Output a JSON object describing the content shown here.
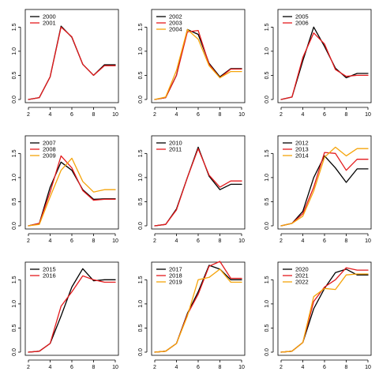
{
  "colors": {
    "black": "#000000",
    "red": "#e41a1c",
    "orange": "#f5a40a"
  },
  "chart_data": [
    {
      "type": "line",
      "x": [
        2,
        3,
        4,
        5,
        6,
        7,
        8,
        9,
        10
      ],
      "xlim": [
        2,
        10
      ],
      "ylim": [
        0,
        1.8
      ],
      "xticks": [
        "2",
        "4",
        "6",
        "8",
        "10"
      ],
      "yticks": [
        "0.0",
        "0.5",
        "1.0",
        "1.5"
      ],
      "grid": false,
      "legend_position": "top-left",
      "series": [
        {
          "name": "2000",
          "color": "#000000",
          "values": [
            0,
            0.04,
            0.47,
            1.52,
            1.29,
            0.73,
            0.5,
            0.72,
            0.72
          ]
        },
        {
          "name": "2001",
          "color": "#e41a1c",
          "values": [
            0,
            0.04,
            0.47,
            1.5,
            1.3,
            0.73,
            0.5,
            0.7,
            0.7
          ]
        }
      ]
    },
    {
      "type": "line",
      "x": [
        2,
        3,
        4,
        5,
        6,
        7,
        8,
        9,
        10
      ],
      "xlim": [
        2,
        10
      ],
      "ylim": [
        0,
        1.8
      ],
      "xticks": [
        "2",
        "4",
        "6",
        "8",
        "10"
      ],
      "yticks": [
        "0.0",
        "0.5",
        "1.0",
        "1.5"
      ],
      "grid": false,
      "legend_position": "top-left",
      "series": [
        {
          "name": "2002",
          "color": "#000000",
          "values": [
            0,
            0.04,
            0.5,
            1.45,
            1.35,
            0.75,
            0.47,
            0.64,
            0.64
          ]
        },
        {
          "name": "2003",
          "color": "#e41a1c",
          "values": [
            0,
            0.04,
            0.5,
            1.4,
            1.43,
            0.73,
            0.45,
            0.63,
            0.63
          ]
        },
        {
          "name": "2004",
          "color": "#f5a40a",
          "values": [
            0,
            0.05,
            0.6,
            1.45,
            1.25,
            0.7,
            0.45,
            0.58,
            0.58
          ]
        }
      ]
    },
    {
      "type": "line",
      "x": [
        2,
        3,
        4,
        5,
        6,
        7,
        8,
        9,
        10
      ],
      "xlim": [
        2,
        10
      ],
      "ylim": [
        0,
        1.8
      ],
      "xticks": [
        "2",
        "4",
        "6",
        "8",
        "10"
      ],
      "yticks": [
        "0.0",
        "0.5",
        "1.0",
        "1.5"
      ],
      "grid": false,
      "legend_position": "top-left",
      "series": [
        {
          "name": "2005",
          "color": "#000000",
          "values": [
            0,
            0.05,
            0.8,
            1.5,
            1.1,
            0.65,
            0.45,
            0.54,
            0.54
          ]
        },
        {
          "name": "2006",
          "color": "#e41a1c",
          "values": [
            0,
            0.05,
            0.87,
            1.38,
            1.15,
            0.62,
            0.48,
            0.5,
            0.5
          ]
        }
      ]
    },
    {
      "type": "line",
      "x": [
        2,
        3,
        4,
        5,
        6,
        7,
        8,
        9,
        10
      ],
      "xlim": [
        2,
        10
      ],
      "ylim": [
        0,
        1.8
      ],
      "xticks": [
        "2",
        "4",
        "6",
        "8",
        "10"
      ],
      "yticks": [
        "0.0",
        "0.5",
        "1.0",
        "1.5"
      ],
      "grid": false,
      "legend_position": "top-left",
      "series": [
        {
          "name": "2007",
          "color": "#000000",
          "values": [
            0,
            0.05,
            0.8,
            1.32,
            1.15,
            0.75,
            0.55,
            0.56,
            0.56
          ]
        },
        {
          "name": "2008",
          "color": "#e41a1c",
          "values": [
            0,
            0.05,
            0.7,
            1.45,
            1.2,
            0.73,
            0.53,
            0.55,
            0.55
          ]
        },
        {
          "name": "2009",
          "color": "#f5a40a",
          "values": [
            0,
            0.03,
            0.6,
            1.15,
            1.4,
            0.92,
            0.7,
            0.75,
            0.75
          ]
        }
      ]
    },
    {
      "type": "line",
      "x": [
        2,
        3,
        4,
        5,
        6,
        7,
        8,
        9,
        10
      ],
      "xlim": [
        2,
        10
      ],
      "ylim": [
        0,
        1.8
      ],
      "xticks": [
        "2",
        "4",
        "6",
        "8",
        "10"
      ],
      "yticks": [
        "0.0",
        "0.5",
        "1.0",
        "1.5"
      ],
      "grid": false,
      "legend_position": "top-left",
      "series": [
        {
          "name": "2010",
          "color": "#000000",
          "values": [
            0,
            0.03,
            0.35,
            1.0,
            1.63,
            1.03,
            0.75,
            0.86,
            0.86
          ]
        },
        {
          "name": "2011",
          "color": "#e41a1c",
          "values": [
            0,
            0.03,
            0.33,
            1.0,
            1.6,
            1.05,
            0.8,
            0.93,
            0.93
          ]
        }
      ]
    },
    {
      "type": "line",
      "x": [
        2,
        3,
        4,
        5,
        6,
        7,
        8,
        9,
        10
      ],
      "xlim": [
        2,
        10
      ],
      "ylim": [
        0,
        1.8
      ],
      "xticks": [
        "2",
        "4",
        "6",
        "8",
        "10"
      ],
      "yticks": [
        "0.0",
        "0.5",
        "1.0",
        "1.5"
      ],
      "grid": false,
      "legend_position": "top-left",
      "series": [
        {
          "name": "2012",
          "color": "#000000",
          "values": [
            0,
            0.05,
            0.3,
            1.0,
            1.45,
            1.2,
            0.9,
            1.18,
            1.18
          ]
        },
        {
          "name": "2013",
          "color": "#e41a1c",
          "values": [
            0,
            0.05,
            0.25,
            0.8,
            1.52,
            1.5,
            1.15,
            1.38,
            1.38
          ]
        },
        {
          "name": "2014",
          "color": "#f5a40a",
          "values": [
            0,
            0.05,
            0.2,
            0.72,
            1.42,
            1.63,
            1.45,
            1.6,
            1.6
          ]
        }
      ]
    },
    {
      "type": "line",
      "x": [
        2,
        3,
        4,
        5,
        6,
        7,
        8,
        9,
        10
      ],
      "xlim": [
        2,
        10
      ],
      "ylim": [
        0,
        1.8
      ],
      "xticks": [
        "2",
        "4",
        "6",
        "8",
        "10"
      ],
      "yticks": [
        "0.0",
        "0.5",
        "1.0",
        "1.5"
      ],
      "grid": false,
      "legend_position": "top-left",
      "series": [
        {
          "name": "2015",
          "color": "#000000",
          "values": [
            0,
            0.02,
            0.18,
            0.75,
            1.35,
            1.73,
            1.48,
            1.5,
            1.5
          ]
        },
        {
          "name": "2016",
          "color": "#e41a1c",
          "values": [
            0,
            0.02,
            0.18,
            0.95,
            1.25,
            1.58,
            1.5,
            1.45,
            1.45
          ]
        }
      ]
    },
    {
      "type": "line",
      "x": [
        2,
        3,
        4,
        5,
        6,
        7,
        8,
        9,
        10
      ],
      "xlim": [
        2,
        10
      ],
      "ylim": [
        0,
        1.8
      ],
      "xticks": [
        "2",
        "4",
        "6",
        "8",
        "10"
      ],
      "yticks": [
        "0.0",
        "0.5",
        "1.0",
        "1.5"
      ],
      "grid": false,
      "legend_position": "top-left",
      "series": [
        {
          "name": "2017",
          "color": "#000000",
          "values": [
            0,
            0.02,
            0.18,
            0.8,
            1.25,
            1.8,
            1.72,
            1.5,
            1.5
          ]
        },
        {
          "name": "2018",
          "color": "#e41a1c",
          "values": [
            0,
            0.02,
            0.18,
            0.78,
            1.2,
            1.78,
            1.88,
            1.53,
            1.53
          ]
        },
        {
          "name": "2019",
          "color": "#f5a40a",
          "values": [
            0,
            0.02,
            0.18,
            0.75,
            1.5,
            1.55,
            1.72,
            1.45,
            1.45
          ]
        }
      ]
    },
    {
      "type": "line",
      "x": [
        2,
        3,
        4,
        5,
        6,
        7,
        8,
        9,
        10
      ],
      "xlim": [
        2,
        10
      ],
      "ylim": [
        0,
        1.8
      ],
      "xticks": [
        "2",
        "4",
        "6",
        "8",
        "10"
      ],
      "yticks": [
        "0.0",
        "0.5",
        "1.0",
        "1.5"
      ],
      "grid": false,
      "legend_position": "top-left",
      "series": [
        {
          "name": "2020",
          "color": "#000000",
          "values": [
            0,
            0.02,
            0.2,
            0.9,
            1.32,
            1.65,
            1.72,
            1.6,
            1.6
          ]
        },
        {
          "name": "2021",
          "color": "#e41a1c",
          "values": [
            0,
            0.02,
            0.2,
            1.05,
            1.35,
            1.5,
            1.75,
            1.7,
            1.7
          ]
        },
        {
          "name": "2022",
          "color": "#f5a40a",
          "values": [
            0,
            0.02,
            0.2,
            1.15,
            1.32,
            1.3,
            1.6,
            1.62,
            1.62
          ]
        }
      ]
    }
  ]
}
